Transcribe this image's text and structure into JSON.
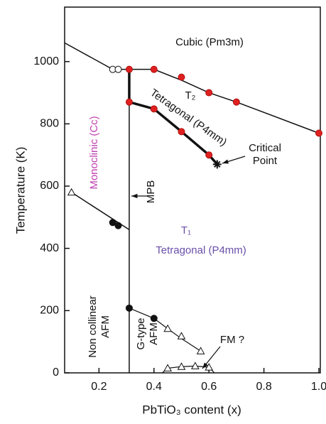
{
  "chart_data": {
    "type": "line",
    "x_label": "PbTiO₃ content (x)",
    "y_label": "Temperature (K)",
    "xlim": [
      0.075,
      1.0
    ],
    "ylim": [
      0,
      1175
    ],
    "xticks": [
      0.2,
      0.4,
      0.6,
      0.8,
      {
        "value": 1.0,
        "label": "1.0"
      }
    ],
    "yticks": [
      0,
      200,
      400,
      600,
      800,
      1000
    ],
    "series": [
      {
        "x": [
          0.075,
          0.25,
          0.27,
          0.31,
          0.4,
          0.5,
          0.6,
          0.7,
          1.0
        ],
        "values": [
          1060,
          975,
          975,
          975,
          975,
          940,
          900,
          870,
          770
        ],
        "color": "#111111",
        "width": 1.5,
        "marker": "none"
      },
      {
        "x": [
          0.31,
          0.31,
          0.4,
          0.5,
          0.6,
          0.63
        ],
        "values": [
          975,
          870,
          848,
          775,
          700,
          670
        ],
        "color": "#111111",
        "width": 3.5,
        "marker": "none"
      },
      {
        "x": [
          0.31,
          0.31
        ],
        "values": [
          0,
          975
        ],
        "color": "#111111",
        "width": 1.5,
        "marker": "none"
      },
      {
        "x": [
          0.1,
          0.31
        ],
        "values": [
          580,
          460
        ],
        "color": "#111111",
        "width": 1.5,
        "marker": "none"
      },
      {
        "x": [
          0.31,
          0.4,
          0.45,
          0.5,
          0.57
        ],
        "values": [
          208,
          175,
          142,
          110,
          70
        ],
        "color": "#111111",
        "width": 1.2,
        "marker": "none"
      },
      {
        "x": [
          0.43,
          0.45,
          0.5,
          0.55,
          0.6,
          0.62
        ],
        "values": [
          0,
          15,
          20,
          22,
          18,
          0
        ],
        "color": "#111111",
        "width": 1.2,
        "marker": "none"
      },
      {
        "x": [
          0.25,
          0.27
        ],
        "values": [
          975,
          975
        ],
        "color": "#111111",
        "marker": "open-circle"
      },
      {
        "x": [
          0.31,
          0.4,
          0.5,
          0.6,
          0.7,
          1.0,
          0.31,
          0.4,
          0.5,
          0.6
        ],
        "values": [
          975,
          975,
          950,
          900,
          870,
          770,
          870,
          848,
          775,
          700
        ],
        "color": "#e02020",
        "marker": "red-circle"
      },
      {
        "x": [
          0.25,
          0.27,
          0.31,
          0.4
        ],
        "values": [
          483,
          473,
          208,
          175
        ],
        "color": "#111111",
        "marker": "filled-circle"
      },
      {
        "x": [
          0.1,
          0.45,
          0.5,
          0.57,
          0.45,
          0.5,
          0.55,
          0.6
        ],
        "values": [
          580,
          142,
          118,
          70,
          15,
          20,
          22,
          18
        ],
        "color": "#111111",
        "marker": "triangle"
      },
      {
        "x": [
          0.63
        ],
        "values": [
          670
        ],
        "color": "#111111",
        "marker": "star"
      }
    ],
    "annotations": [
      {
        "text": [
          "Cubic  (Pm3m)"
        ],
        "color": "#111111"
      },
      {
        "text": [
          "T₂"
        ],
        "color": "#111111"
      },
      {
        "text": [
          "Tetragonal (P4mm)"
        ],
        "color": "#111111"
      },
      {
        "text": [
          "Monoclinic  (Cc)"
        ],
        "color": "#c040b0"
      },
      {
        "text": [
          "MPB"
        ],
        "color": "#111111"
      },
      {
        "text": [
          "T₁"
        ],
        "color": "#6a4fa8"
      },
      {
        "text": [
          "Tetragonal  (P4mm)"
        ],
        "color": "#6a4fa8"
      },
      {
        "text": [
          "Critical",
          "Point"
        ],
        "color": "#111111"
      },
      {
        "text": [
          "Non collinear",
          "AFM"
        ],
        "color": "#111111"
      },
      {
        "text": [
          "G-type",
          "AFM"
        ],
        "color": "#111111"
      },
      {
        "text": [
          "FM ?"
        ],
        "color": "#111111"
      }
    ]
  }
}
